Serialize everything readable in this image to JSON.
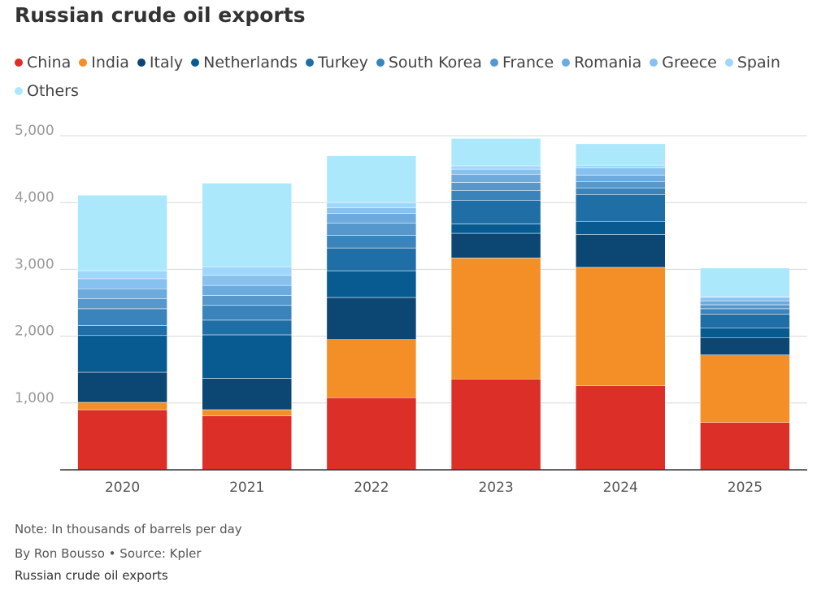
{
  "title": "Russian crude oil exports",
  "note": "Note: In thousands of barrels per day",
  "byline": "By Ron Bousso • Source: Kpler",
  "caption": "Russian crude oil exports",
  "chart_data": {
    "type": "bar",
    "stacked": true,
    "title": "Russian crude oil exports",
    "xlabel": "",
    "ylabel": "In thousands of barrels per day",
    "ylim": [
      0,
      5000
    ],
    "yticks": [
      1000,
      2000,
      3000,
      4000,
      5000
    ],
    "ytick_labels": [
      "1,000",
      "2,000",
      "3,000",
      "4,000",
      "5,000"
    ],
    "grid": true,
    "legend_position": "top",
    "categories": [
      "2020",
      "2021",
      "2022",
      "2023",
      "2024",
      "2025"
    ],
    "series": [
      {
        "name": "China",
        "color": "#dc2f27",
        "values": [
          900,
          810,
          1080,
          1360,
          1260,
          710
        ]
      },
      {
        "name": "India",
        "color": "#f38f26",
        "values": [
          110,
          90,
          870,
          1810,
          1770,
          1010
        ]
      },
      {
        "name": "Italy",
        "color": "#0c4672",
        "values": [
          450,
          470,
          630,
          370,
          490,
          260
        ]
      },
      {
        "name": "Netherlands",
        "color": "#085b91",
        "values": [
          550,
          650,
          400,
          140,
          200,
          140
        ]
      },
      {
        "name": "Turkey",
        "color": "#1f6ea5",
        "values": [
          150,
          220,
          340,
          350,
          400,
          210
        ]
      },
      {
        "name": "South Korea",
        "color": "#3a83bb",
        "values": [
          250,
          220,
          190,
          150,
          100,
          80
        ]
      },
      {
        "name": "France",
        "color": "#5698cc",
        "values": [
          150,
          150,
          180,
          120,
          90,
          60
        ]
      },
      {
        "name": "Romania",
        "color": "#6dabdf",
        "values": [
          150,
          150,
          150,
          120,
          100,
          60
        ]
      },
      {
        "name": "Greece",
        "color": "#87c1ef",
        "values": [
          150,
          150,
          80,
          80,
          110,
          50
        ]
      },
      {
        "name": "Spain",
        "color": "#9fd6fb",
        "values": [
          120,
          130,
          80,
          50,
          40,
          20
        ]
      },
      {
        "name": "Others",
        "color": "#ace8fc",
        "values": [
          1130,
          1250,
          700,
          410,
          320,
          420
        ]
      }
    ]
  }
}
